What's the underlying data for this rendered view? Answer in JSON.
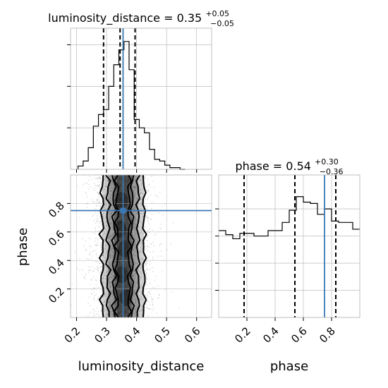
{
  "colors": {
    "truth": "#3b78b4",
    "hist": "#000000",
    "grid": "#b0b0b0"
  },
  "titles": {
    "ld_prefix": "luminosity_distance = 0.35",
    "ld_plus": "+0.05",
    "ld_minus": "−0.05",
    "ph_prefix": "phase = 0.54",
    "ph_plus": "+0.30",
    "ph_minus": "−0.36"
  },
  "chart_data": {
    "type": "corner",
    "parameters": [
      "luminosity_distance",
      "phase"
    ],
    "truths": {
      "luminosity_distance": 0.355,
      "phase": 0.75
    },
    "quantiles": {
      "luminosity_distance": [
        0.29,
        0.345,
        0.395
      ],
      "phase": [
        0.18,
        0.54,
        0.83
      ]
    },
    "luminosity_distance_hist": {
      "xlim": [
        0.18,
        0.65
      ],
      "xticks": [
        0.2,
        0.3,
        0.4,
        0.5,
        0.6
      ],
      "xtick_labels": [
        "0.2",
        "0.3",
        "0.4",
        "0.5",
        "0.6"
      ],
      "bin_edges": [
        0.205,
        0.222,
        0.239,
        0.256,
        0.273,
        0.29,
        0.307,
        0.324,
        0.341,
        0.358,
        0.375,
        0.392,
        0.409,
        0.426,
        0.443,
        0.46,
        0.477,
        0.494,
        0.511,
        0.528,
        0.545,
        0.562
      ],
      "counts": [
        0.02,
        0.05,
        0.13,
        0.26,
        0.33,
        0.36,
        0.5,
        0.63,
        0.72,
        0.77,
        0.6,
        0.3,
        0.25,
        0.22,
        0.12,
        0.06,
        0.05,
        0.025,
        0.01,
        0.01,
        0.0
      ],
      "ylim": [
        0,
        0.85
      ],
      "grid_y": [
        0.25,
        0.5,
        0.75
      ]
    },
    "phase_hist": {
      "xlim": [
        0.0,
        1.0
      ],
      "xticks": [
        0.2,
        0.4,
        0.6,
        0.8
      ],
      "xtick_labels": [
        "0.2",
        "0.4",
        "0.6",
        "0.8"
      ],
      "bin_edges": [
        0.0,
        0.05,
        0.1,
        0.15,
        0.2,
        0.25,
        0.3,
        0.35,
        0.4,
        0.45,
        0.5,
        0.55,
        0.6,
        0.65,
        0.7,
        0.75,
        0.8,
        0.85,
        0.9,
        0.95,
        1.0
      ],
      "counts": [
        0.64,
        0.61,
        0.58,
        0.62,
        0.62,
        0.6,
        0.6,
        0.64,
        0.64,
        0.7,
        0.79,
        0.89,
        0.85,
        0.84,
        0.76,
        0.8,
        0.71,
        0.7,
        0.7,
        0.65
      ],
      "ylim": [
        0,
        1.05
      ],
      "grid_y": [
        0.2,
        0.4,
        0.6,
        0.8
      ]
    },
    "scatter_2d": {
      "xlim": [
        0.18,
        0.65
      ],
      "ylim": [
        0.0,
        1.0
      ],
      "xticks": [
        0.2,
        0.3,
        0.4,
        0.5,
        0.6
      ],
      "xtick_labels": [
        "0.2",
        "0.3",
        "0.4",
        "0.5",
        "0.6"
      ],
      "yticks": [
        0.2,
        0.4,
        0.6,
        0.8
      ],
      "ytick_labels": [
        "0.2",
        "0.4",
        "0.6",
        "0.8"
      ],
      "xlabel": "luminosity_distance",
      "ylabel": "phase",
      "grid": true,
      "contour_x_bounds": [
        [
          0.285,
          0.425
        ],
        [
          0.305,
          0.405
        ],
        [
          0.325,
          0.385
        ],
        [
          0.335,
          0.375
        ]
      ]
    }
  }
}
